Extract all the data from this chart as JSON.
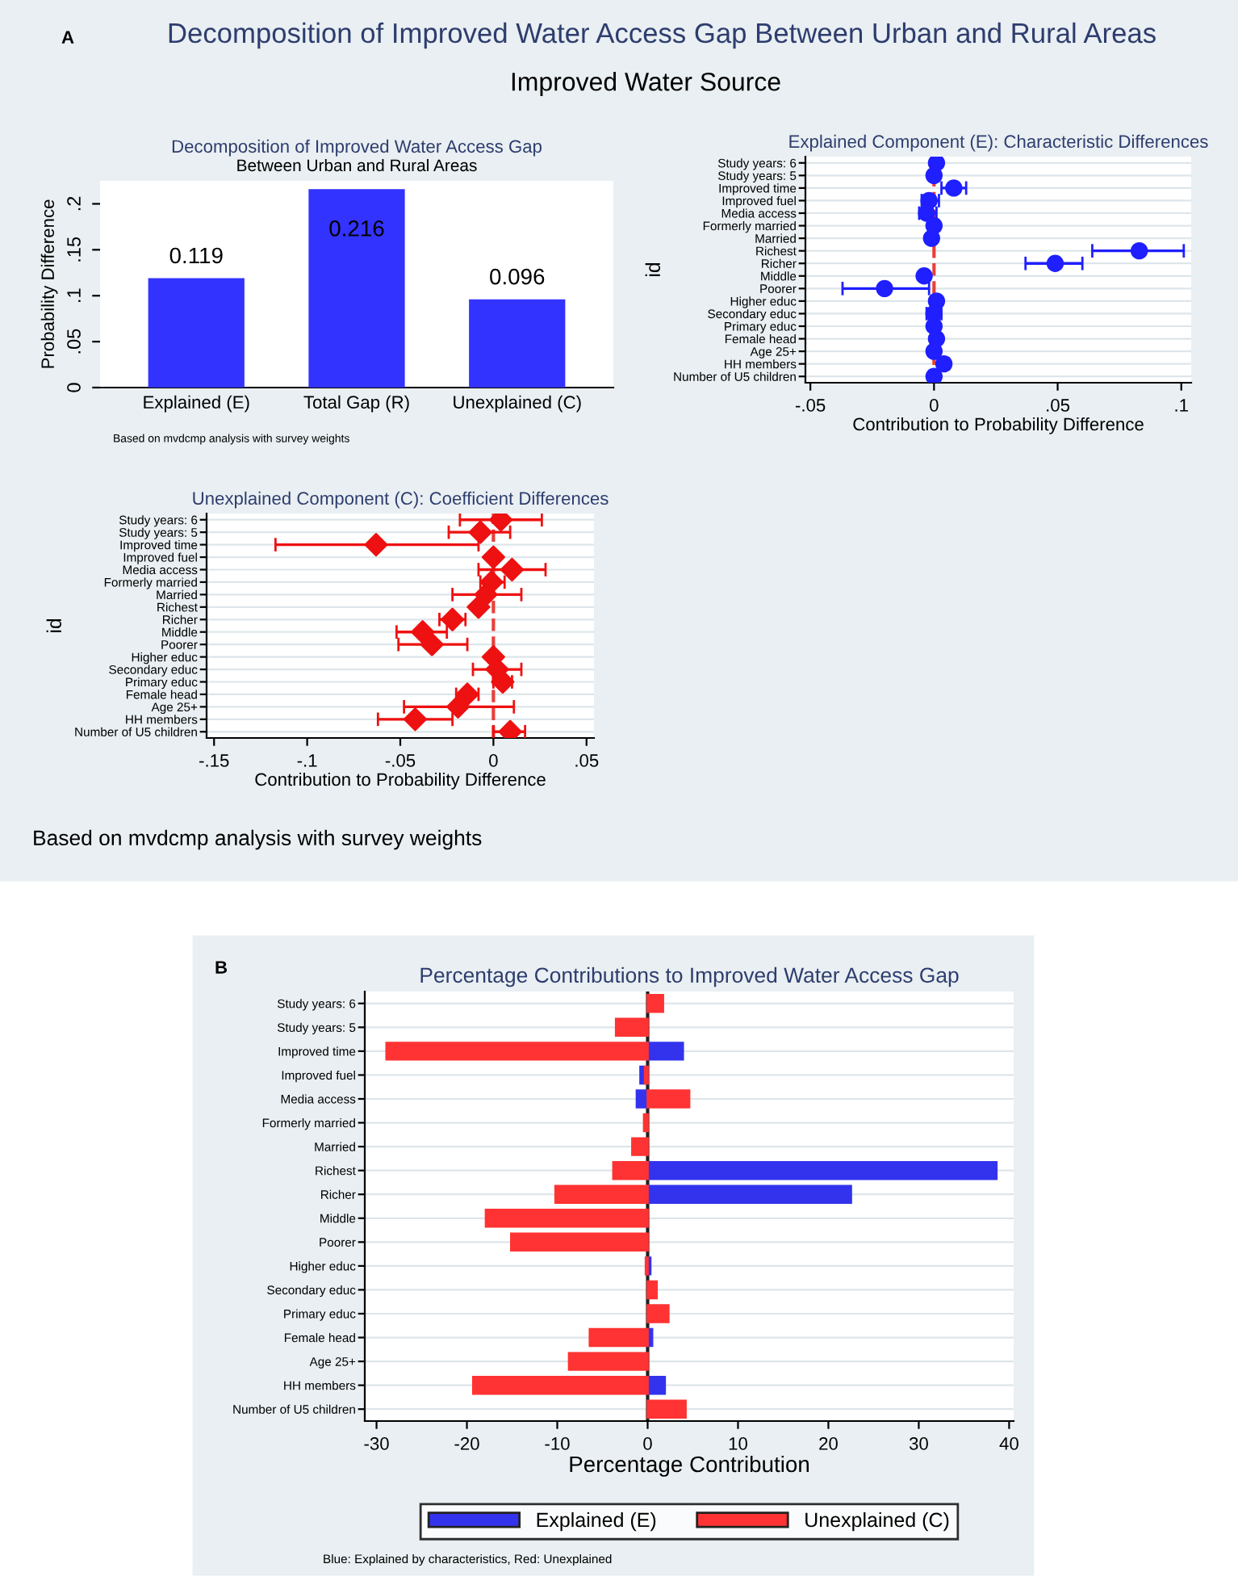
{
  "chart_data": [
    {
      "type": "bar",
      "title": "Decomposition of Improved Water Access Gap",
      "subtitle": "Between Urban and Rural Areas",
      "ylabel": "Probability Difference",
      "categories": [
        "Explained (E)",
        "Total Gap (R)",
        "Unexplained (C)"
      ],
      "values": [
        0.119,
        0.216,
        0.096
      ],
      "color": "#3333ff",
      "data_labels": true,
      "ylim": [
        0,
        0.225
      ],
      "yticks": [
        0,
        {
          "value": 0.05,
          "label": ".05"
        },
        {
          "value": 0.1,
          "label": ".1"
        },
        {
          "value": 0.15,
          "label": ".15"
        },
        {
          "value": 0.2,
          "label": ".2"
        }
      ],
      "annotations": [
        "A",
        "Decomposition of Improved Water Access Gap Between Urban and Rural Areas",
        "Improved Water Source",
        "Based on mvdcmp analysis with survey weights"
      ]
    },
    {
      "type": "scatter",
      "orientation": "horizontal",
      "title": "Explained Component (E): Characteristic Differences",
      "ylabel": "id",
      "xlabel": "Contribution to Probability Difference",
      "categories": [
        "Study years: 6",
        "Study years: 5",
        "Improved time",
        "Improved fuel",
        "Media access",
        "Formerly married",
        "Married",
        "Richest",
        "Richer",
        "Middle",
        "Poorer",
        "Higher educ",
        "Secondary educ",
        "Primary educ",
        "Female head",
        "Age 25+",
        "HH members",
        "Number of U5 children"
      ],
      "values": [
        0.001,
        0,
        0.008,
        -0.002,
        -0.003,
        0,
        -0.001,
        0.083,
        0.049,
        -0.004,
        -0.02,
        0.001,
        0,
        0,
        0.001,
        0,
        0.004,
        0
      ],
      "errors": [
        null,
        null,
        [
          0.003,
          0.013
        ],
        [
          -0.005,
          0.002
        ],
        [
          -0.006,
          0.001
        ],
        null,
        null,
        [
          0.064,
          0.101
        ],
        [
          0.037,
          0.06
        ],
        null,
        [
          -0.037,
          -0.002
        ],
        null,
        [
          -0.003,
          0.003
        ],
        null,
        null,
        null,
        [
          0.002,
          0.006
        ],
        [
          -0.002,
          0.002
        ]
      ],
      "color": "#1f1fff",
      "marker": "circle",
      "grid": "y",
      "xlim": [
        -0.052,
        0.104
      ],
      "xticks": [
        {
          "value": -0.05,
          "label": "-.05"
        },
        0,
        {
          "value": 0.05,
          "label": ".05"
        },
        {
          "value": 0.1,
          "label": ".1"
        }
      ],
      "ref_lines": [
        {
          "axis": "x",
          "value": 0,
          "color": "#e8403a",
          "line_style": "dashed"
        }
      ]
    },
    {
      "type": "scatter",
      "orientation": "horizontal",
      "title": "Unexplained Component (C): Coefficient Differences",
      "ylabel": "id",
      "xlabel": "Contribution to Probability Difference",
      "categories": [
        "Study years: 6",
        "Study years: 5",
        "Improved time",
        "Improved fuel",
        "Media access",
        "Formerly married",
        "Married",
        "Richest",
        "Richer",
        "Middle",
        "Poorer",
        "Higher educ",
        "Secondary educ",
        "Primary educ",
        "Female head",
        "Age 25+",
        "HH members",
        "Number of U5 children"
      ],
      "values": [
        0.004,
        -0.007,
        -0.063,
        0,
        0.01,
        -0.001,
        -0.004,
        -0.008,
        -0.022,
        -0.038,
        -0.033,
        0,
        0.002,
        0.005,
        -0.014,
        -0.019,
        -0.042,
        0.009
      ],
      "errors": [
        [
          -0.018,
          0.026
        ],
        [
          -0.024,
          0.009
        ],
        [
          -0.117,
          -0.008
        ],
        null,
        [
          -0.008,
          0.028
        ],
        [
          -0.007,
          0.006
        ],
        [
          -0.022,
          0.015
        ],
        null,
        [
          -0.029,
          -0.015
        ],
        [
          -0.052,
          -0.025
        ],
        [
          -0.051,
          -0.014
        ],
        null,
        [
          -0.011,
          0.015
        ],
        [
          0,
          0.01
        ],
        [
          -0.02,
          -0.008
        ],
        [
          -0.048,
          0.011
        ],
        [
          -0.062,
          -0.022
        ],
        [
          0,
          0.017
        ]
      ],
      "color": "#ee1111",
      "marker": "diamond",
      "grid": "y",
      "xlim": [
        -0.154,
        0.054
      ],
      "xticks": [
        {
          "value": -0.15,
          "label": "-.15"
        },
        {
          "value": -0.1,
          "label": "-.1"
        },
        {
          "value": -0.05,
          "label": "-.05"
        },
        0,
        {
          "value": 0.05,
          "label": ".05"
        }
      ],
      "ref_lines": [
        {
          "axis": "x",
          "value": 0,
          "color": "#e8403a",
          "line_style": "dashed"
        }
      ],
      "annotations": [
        "Based on mvdcmp analysis with survey weights"
      ]
    },
    {
      "type": "bar",
      "orientation": "horizontal",
      "title": "Percentage Contributions to Improved Water Access Gap",
      "xlabel": "Percentage Contribution",
      "categories": [
        "Study years: 6",
        "Study years: 5",
        "Improved time",
        "Improved fuel",
        "Media access",
        "Formerly married",
        "Married",
        "Richest",
        "Richer",
        "Middle",
        "Poorer",
        "Higher educ",
        "Secondary educ",
        "Primary educ",
        "Female head",
        "Age 25+",
        "HH members",
        "Number of U5 children"
      ],
      "series": [
        {
          "name": "Explained (E)",
          "color": "#3333ee",
          "values": [
            null,
            null,
            3.9,
            -0.8,
            -1.2,
            null,
            null,
            38.6,
            22.5,
            null,
            null,
            0.3,
            null,
            null,
            0.5,
            null,
            1.9,
            null
          ]
        },
        {
          "name": "Unexplained (C)",
          "color": "#ff3333",
          "values": [
            1.7,
            -3.5,
            -28.9,
            -0.3,
            4.6,
            -0.4,
            -1.7,
            -3.8,
            -10.2,
            -17.9,
            -15.1,
            -0.2,
            1.0,
            2.3,
            -6.4,
            -8.7,
            -19.3,
            4.2
          ]
        }
      ],
      "xlim": [
        -31.3,
        40.5
      ],
      "xticks": [
        -30,
        -20,
        -10,
        0,
        10,
        20,
        30,
        40
      ],
      "grid": "y",
      "legend": "bottom",
      "ref_lines": [
        {
          "axis": "x",
          "value": 0,
          "color": "#222222",
          "line_style": "solid"
        }
      ],
      "annotations": [
        "B",
        "Blue: Explained by characteristics, Red: Unexplained"
      ]
    }
  ]
}
